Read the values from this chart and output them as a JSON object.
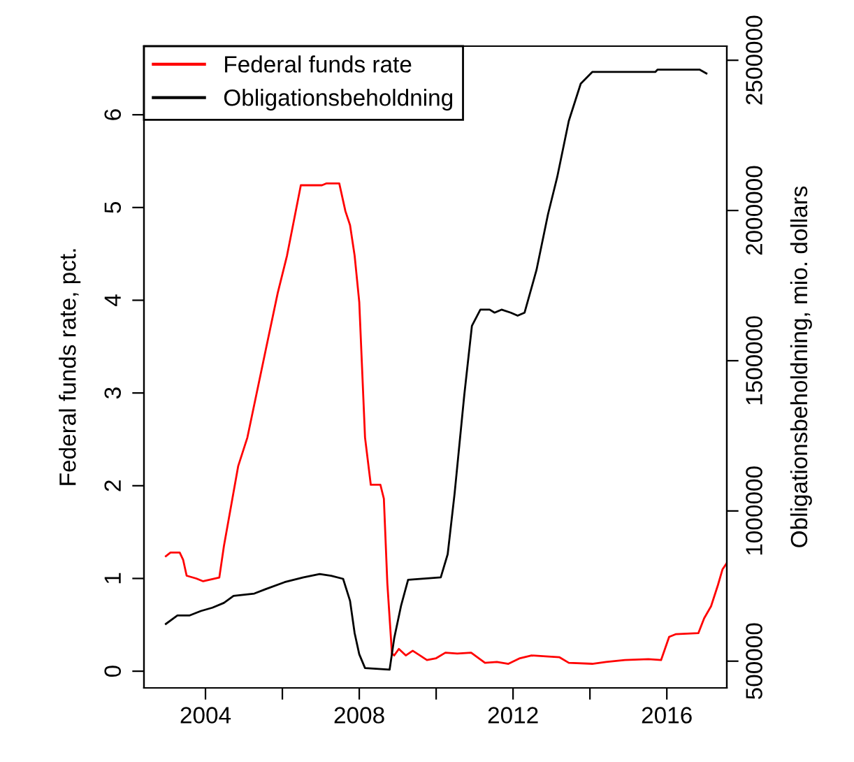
{
  "chart_data": {
    "type": "line",
    "ylabel": "Federal funds rate, pct.",
    "y2label": "Obligationsbeholdning, mio. dollars",
    "xlim": [
      2002.4,
      2017.56
    ],
    "xticks": [
      2004,
      {
        "value": 2006,
        "label": null
      },
      2008,
      {
        "value": 2010,
        "label": null
      },
      2012,
      {
        "value": 2014,
        "label": null
      },
      2016
    ],
    "ylim": [
      -0.18,
      6.74
    ],
    "yticks": [
      0,
      1,
      2,
      3,
      4,
      5,
      6
    ],
    "y2lim": [
      411000,
      2547000
    ],
    "y2ticks": [
      500000,
      1000000,
      1500000,
      2000000,
      2500000
    ],
    "legend": "top left",
    "grid": false,
    "series": [
      {
        "name": "Federal funds rate",
        "color": "#ff0000",
        "x": [
          2002.97,
          2003.09,
          2003.33,
          2003.42,
          2003.51,
          2003.76,
          2003.94,
          2004.36,
          2004.48,
          2004.85,
          2005.09,
          2005.57,
          2005.88,
          2006.12,
          2006.3,
          2006.48,
          2007.03,
          2007.15,
          2007.48,
          2007.64,
          2007.76,
          2007.88,
          2008.0,
          2008.15,
          2008.3,
          2008.55,
          2008.64,
          2008.73,
          2008.85,
          2008.91,
          2009.03,
          2009.21,
          2009.39,
          2009.58,
          2009.76,
          2010.0,
          2010.24,
          2010.55,
          2010.91,
          2011.27,
          2011.58,
          2011.88,
          2012.18,
          2012.48,
          2012.85,
          2013.21,
          2013.45,
          2014.06,
          2014.42,
          2014.91,
          2015.52,
          2015.85,
          2016.06,
          2016.24,
          2016.82,
          2016.97,
          2017.15,
          2017.33,
          2017.45,
          2017.55
        ],
        "values": [
          1.24,
          1.28,
          1.28,
          1.2,
          1.03,
          1.0,
          0.97,
          1.01,
          1.35,
          2.21,
          2.52,
          3.47,
          4.08,
          4.48,
          4.86,
          5.24,
          5.24,
          5.26,
          5.26,
          4.96,
          4.81,
          4.48,
          3.98,
          2.52,
          2.01,
          2.01,
          1.86,
          0.95,
          0.19,
          0.17,
          0.24,
          0.17,
          0.22,
          0.17,
          0.12,
          0.14,
          0.2,
          0.19,
          0.2,
          0.09,
          0.1,
          0.08,
          0.14,
          0.17,
          0.16,
          0.15,
          0.09,
          0.08,
          0.1,
          0.12,
          0.13,
          0.12,
          0.37,
          0.4,
          0.41,
          0.57,
          0.7,
          0.93,
          1.1,
          1.16
        ]
      },
      {
        "name": "Obligationsbeholdning",
        "color": "#000000",
        "axis": "y2",
        "x": [
          2002.97,
          2003.27,
          2003.58,
          2003.88,
          2004.18,
          2004.48,
          2004.73,
          2005.27,
          2005.57,
          2006.06,
          2006.55,
          2006.97,
          2007.27,
          2007.58,
          2007.76,
          2007.88,
          2008.0,
          2008.15,
          2008.79,
          2008.91,
          2009.09,
          2009.27,
          2010.12,
          2010.3,
          2010.48,
          2010.73,
          2010.93,
          2011.15,
          2011.39,
          2011.52,
          2011.7,
          2011.94,
          2012.12,
          2012.3,
          2012.61,
          2012.91,
          2013.15,
          2013.45,
          2013.76,
          2014.06,
          2015.7,
          2015.76,
          2016.85,
          2017.03
        ],
        "values": [
          624000,
          652000,
          652000,
          667000,
          678000,
          694000,
          717000,
          725000,
          740000,
          763000,
          779000,
          790000,
          784000,
          774000,
          701000,
          593000,
          523000,
          477000,
          472000,
          577000,
          686000,
          771000,
          779000,
          856000,
          1058000,
          1384000,
          1616000,
          1670000,
          1670000,
          1660000,
          1670000,
          1660000,
          1650000,
          1660000,
          1802000,
          1988000,
          2112000,
          2298000,
          2422000,
          2461000,
          2461000,
          2469000,
          2469000,
          2456000
        ]
      }
    ]
  }
}
